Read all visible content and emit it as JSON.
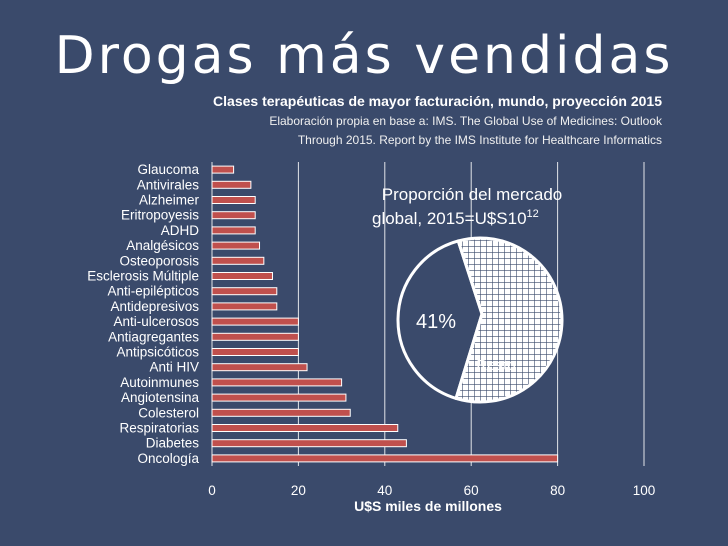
{
  "header": {
    "title": "Drogas más vendidas",
    "subtitle": "Clases terapéuticas de mayor facturación, mundo,  proyección 2015",
    "source_line1": "Elaboración propia en base a: IMS. The Global Use of Medicines: Outlook",
    "source_line2": "Through 2015. Report by the IMS Institute for Healthcare Informatics"
  },
  "colors": {
    "background": "#3a4a6b",
    "bar_fill": "#c0504d",
    "bar_stroke": "#ffffff",
    "grid": "#ffffff",
    "pie_stroke": "#ffffff",
    "pie_hatch": "#3a4a6b"
  },
  "chart_data": [
    {
      "type": "bar",
      "orientation": "horizontal",
      "categories": [
        "Glaucoma",
        "Antivirales",
        "Alzheimer",
        "Eritropoyesis",
        "ADHD",
        "Analgésicos",
        "Osteoporosis",
        "Esclerosis Múltiple",
        "Anti-epilépticos",
        "Antidepresivos",
        "Anti-ulcerosos",
        "Antiagregantes",
        "Antipsicóticos",
        "Anti HIV",
        "Autoinmunes",
        "Angiotensina",
        "Colesterol",
        "Respiratorias",
        "Diabetes",
        "Oncología"
      ],
      "values": [
        5,
        9,
        10,
        10,
        10,
        11,
        12,
        14,
        15,
        15,
        20,
        20,
        20,
        22,
        30,
        31,
        32,
        43,
        45,
        80
      ],
      "xlabel": "U$S miles de millones",
      "ylabel": "",
      "xlim": [
        0,
        100
      ],
      "xticks": [
        0,
        20,
        40,
        60,
        80,
        100
      ],
      "grid": true
    },
    {
      "type": "pie",
      "title_line1": "Proporción del mercado",
      "title_line2": "global, 2015=U$S10",
      "title_superscript": "12",
      "slices": [
        {
          "label": "41%",
          "value": 41,
          "style": "solid"
        },
        {
          "label": "Resto",
          "value": 59,
          "style": "hatched"
        }
      ]
    }
  ]
}
